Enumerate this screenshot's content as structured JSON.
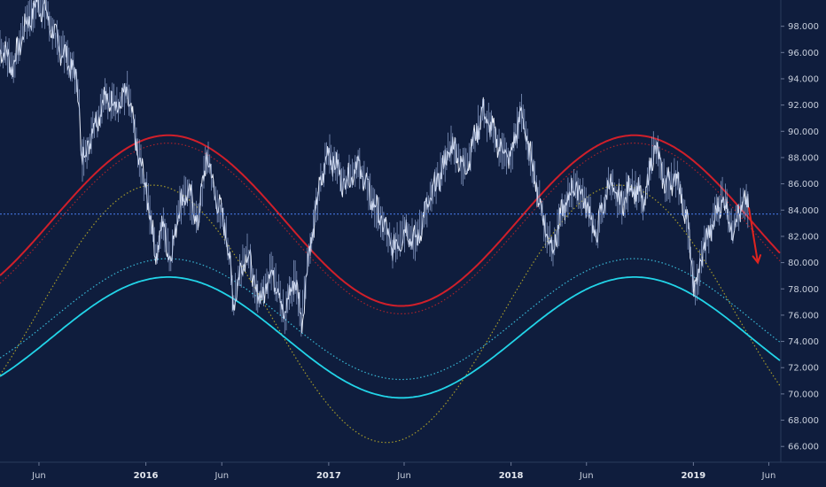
{
  "chart_data": {
    "type": "line",
    "xlabel": "",
    "ylabel": "",
    "ylim": [
      64.8,
      100.0
    ],
    "xlim": [
      "2015-03-15",
      "2019-06-25"
    ],
    "y_ticks": [
      "98.000",
      "96.000",
      "94.000",
      "92.000",
      "90.000",
      "88.000",
      "86.000",
      "84.000",
      "82.000",
      "80.000",
      "78.000",
      "76.000",
      "74.000",
      "72.000",
      "70.000",
      "68.000",
      "66.000"
    ],
    "x_ticks": [
      {
        "label": "Jun",
        "date": "2015-06-01",
        "bold": false
      },
      {
        "label": "2016",
        "date": "2016-01-01",
        "bold": true
      },
      {
        "label": "Jun",
        "date": "2016-06-01",
        "bold": false
      },
      {
        "label": "2017",
        "date": "2017-01-01",
        "bold": true
      },
      {
        "label": "Jun",
        "date": "2017-06-01",
        "bold": false
      },
      {
        "label": "2018",
        "date": "2018-01-01",
        "bold": true
      },
      {
        "label": "Jun",
        "date": "2018-06-01",
        "bold": false
      },
      {
        "label": "2019",
        "date": "2019-01-01",
        "bold": true
      },
      {
        "label": "Jun",
        "date": "2019-06-01",
        "bold": false
      }
    ],
    "horizontal_line": {
      "y": 83.7,
      "color": "#4a7ff0",
      "style": "dotted"
    },
    "price_series": {
      "color": "#e9eef8",
      "anchors": [
        [
          "2015-03-15",
          96.5
        ],
        [
          "2015-04-10",
          95.0
        ],
        [
          "2015-05-05",
          98.0
        ],
        [
          "2015-05-30",
          99.8
        ],
        [
          "2015-06-15",
          99.0
        ],
        [
          "2015-07-10",
          96.5
        ],
        [
          "2015-08-05",
          95.0
        ],
        [
          "2015-08-20",
          93.0
        ],
        [
          "2015-08-25",
          87.5
        ],
        [
          "2015-09-15",
          90.0
        ],
        [
          "2015-10-10",
          92.5
        ],
        [
          "2015-11-10",
          92.0
        ],
        [
          "2015-11-25",
          93.0
        ],
        [
          "2015-12-15",
          88.5
        ],
        [
          "2016-01-05",
          85.0
        ],
        [
          "2016-01-20",
          80.5
        ],
        [
          "2016-02-05",
          83.0
        ],
        [
          "2016-02-20",
          80.0
        ],
        [
          "2016-03-05",
          84.0
        ],
        [
          "2016-03-25",
          85.5
        ],
        [
          "2016-04-15",
          83.0
        ],
        [
          "2016-05-01",
          88.3
        ],
        [
          "2016-05-20",
          85.0
        ],
        [
          "2016-06-10",
          82.5
        ],
        [
          "2016-06-24",
          77.0
        ],
        [
          "2016-07-20",
          81.0
        ],
        [
          "2016-08-15",
          77.0
        ],
        [
          "2016-09-10",
          79.5
        ],
        [
          "2016-10-05",
          76.0
        ],
        [
          "2016-10-25",
          79.0
        ],
        [
          "2016-11-08",
          75.5
        ],
        [
          "2016-11-20",
          80.0
        ],
        [
          "2016-12-15",
          86.0
        ],
        [
          "2017-01-01",
          88.5
        ],
        [
          "2017-02-01",
          86.0
        ],
        [
          "2017-03-01",
          87.5
        ],
        [
          "2017-04-01",
          84.5
        ],
        [
          "2017-04-20",
          83.0
        ],
        [
          "2017-05-10",
          81.0
        ],
        [
          "2017-06-05",
          82.5
        ],
        [
          "2017-06-25",
          81.5
        ],
        [
          "2017-07-15",
          84.0
        ],
        [
          "2017-08-10",
          86.5
        ],
        [
          "2017-09-05",
          89.0
        ],
        [
          "2017-10-01",
          87.0
        ],
        [
          "2017-10-20",
          89.5
        ],
        [
          "2017-11-05",
          91.5
        ],
        [
          "2017-11-25",
          90.0
        ],
        [
          "2017-12-15",
          88.5
        ],
        [
          "2018-01-01",
          88.0
        ],
        [
          "2018-01-20",
          91.5
        ],
        [
          "2018-02-10",
          88.0
        ],
        [
          "2018-03-05",
          83.5
        ],
        [
          "2018-03-25",
          81.0
        ],
        [
          "2018-04-15",
          84.0
        ],
        [
          "2018-05-10",
          86.0
        ],
        [
          "2018-06-01",
          84.5
        ],
        [
          "2018-06-20",
          82.0
        ],
        [
          "2018-07-15",
          86.0
        ],
        [
          "2018-08-10",
          84.5
        ],
        [
          "2018-09-01",
          86.0
        ],
        [
          "2018-09-25",
          84.5
        ],
        [
          "2018-10-15",
          89.0
        ],
        [
          "2018-11-05",
          86.0
        ],
        [
          "2018-11-30",
          86.5
        ],
        [
          "2018-12-20",
          83.0
        ],
        [
          "2018-12-31",
          79.0
        ],
        [
          "2019-01-05",
          77.8
        ],
        [
          "2019-01-20",
          81.0
        ],
        [
          "2019-02-10",
          83.0
        ],
        [
          "2019-03-01",
          85.0
        ],
        [
          "2019-03-20",
          82.5
        ],
        [
          "2019-04-10",
          84.5
        ],
        [
          "2019-04-22",
          84.2
        ]
      ]
    },
    "projection_arrow": {
      "color": "#e0241f",
      "from": [
        "2019-04-22",
        84.2
      ],
      "to": [
        "2019-05-10",
        80.0
      ]
    },
    "sine_bands": [
      {
        "name": "",
        "role": "upper",
        "color": "#d01f2a",
        "style": "solid",
        "center": 83.2,
        "amplitude": 6.5,
        "width": 2.0
      },
      {
        "name": "",
        "role": "upper-inner",
        "color": "#a8222b",
        "style": "dotted",
        "center": 82.6,
        "amplitude": 6.5,
        "width": 1.2
      },
      {
        "name": "",
        "role": "middle",
        "color": "#a59a2a",
        "style": "dotted",
        "center": 76.1,
        "amplitude": 9.8,
        "width": 1.2
      },
      {
        "name": "",
        "role": "lower-inner",
        "color": "#38b8d6",
        "style": "dotted",
        "center": 75.7,
        "amplitude": 4.6,
        "width": 1.2
      },
      {
        "name": "",
        "role": "lower",
        "color": "#22d4e8",
        "style": "solid",
        "center": 74.3,
        "amplitude": 4.6,
        "width": 1.8
      }
    ],
    "cycle": {
      "peak_1": "2016-02-15",
      "peak_2": "2018-09-05",
      "phase_shift_middle_days": -30
    }
  }
}
